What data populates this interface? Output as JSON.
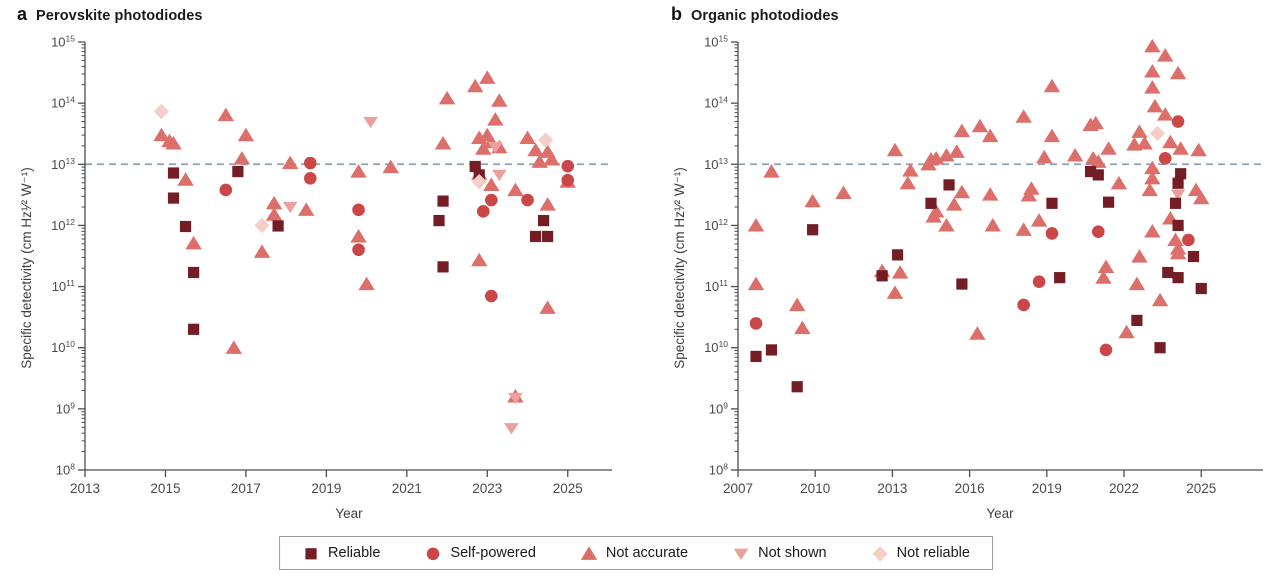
{
  "colors": {
    "reliable": "#741d24",
    "self_powered": "#cb4747",
    "not_accurate": "#dd6f6b",
    "not_shown": "#eb9f9f",
    "not_reliable": "#f6cec9",
    "dashed_line": "#8ca0b6",
    "axis": "#4d4d4d",
    "tick_text": "#4a4a4a"
  },
  "legend": {
    "items": [
      {
        "label": "Reliable",
        "marker": "square",
        "color_key": "reliable"
      },
      {
        "label": "Self-powered",
        "marker": "circle",
        "color_key": "self_powered"
      },
      {
        "label": "Not accurate",
        "marker": "triangle-up",
        "color_key": "not_accurate"
      },
      {
        "label": "Not shown",
        "marker": "triangle-down",
        "color_key": "not_shown"
      },
      {
        "label": "Not reliable",
        "marker": "diamond",
        "color_key": "not_reliable"
      }
    ]
  },
  "chart_data": [
    {
      "type": "scatter",
      "panel_letter": "a",
      "title": "Perovskite photodiodes",
      "xlabel": "Year",
      "ylabel": "Specific detectivity (cm Hz¹⁄² W⁻¹)",
      "x_ticks": [
        2013,
        2015,
        2017,
        2019,
        2021,
        2023,
        2025
      ],
      "x_range": [
        2013,
        2026.1
      ],
      "y_tick_exponents": [
        8,
        9,
        10,
        11,
        12,
        13,
        14,
        15
      ],
      "y_scale": "log",
      "dashed_line_value": 10000000000000.0,
      "series": [
        {
          "key": "not_accurate",
          "name": "Not accurate",
          "marker": "triangle-up",
          "points": [
            [
              2014.9,
              30000000000000.0
            ],
            [
              2015.1,
              24000000000000.0
            ],
            [
              2015.2,
              22000000000000.0
            ],
            [
              2015.5,
              5600000000000.0
            ],
            [
              2015.7,
              510000000000.0
            ],
            [
              2016.5,
              64000000000000.0
            ],
            [
              2016.7,
              10000000000.0
            ],
            [
              2016.9,
              12500000000000.0
            ],
            [
              2017.0,
              30000000000000.0
            ],
            [
              2017.4,
              370000000000.0
            ],
            [
              2017.7,
              2300000000000.0
            ],
            [
              2017.7,
              1500000000000.0
            ],
            [
              2018.1,
              10500000000000.0
            ],
            [
              2018.5,
              1800000000000.0
            ],
            [
              2019.8,
              7600000000000.0
            ],
            [
              2019.8,
              660000000000.0
            ],
            [
              2020.0,
              110000000000.0
            ],
            [
              2020.6,
              9000000000000.0
            ],
            [
              2021.9,
              22000000000000.0
            ],
            [
              2022.0,
              120000000000000.0
            ],
            [
              2022.7,
              190000000000000.0
            ],
            [
              2022.8,
              27000000000000.0
            ],
            [
              2022.8,
              7000000000000.0
            ],
            [
              2022.8,
              270000000000.0
            ],
            [
              2022.9,
              18000000000000.0
            ],
            [
              2023.0,
              260000000000000.0
            ],
            [
              2023.0,
              30000000000000.0
            ],
            [
              2023.1,
              23000000000000.0
            ],
            [
              2023.1,
              4600000000000.0
            ],
            [
              2023.2,
              54000000000000.0
            ],
            [
              2023.3,
              110000000000000.0
            ],
            [
              2023.3,
              19000000000000.0
            ],
            [
              2023.7,
              3800000000000.0
            ],
            [
              2023.7,
              1600000000.0
            ],
            [
              2024.0,
              27000000000000.0
            ],
            [
              2024.2,
              17000000000000.0
            ],
            [
              2024.3,
              11000000000000.0
            ],
            [
              2024.5,
              16000000000000.0
            ],
            [
              2024.5,
              2200000000000.0
            ],
            [
              2024.5,
              45000000000.0
            ],
            [
              2024.6,
              12000000000000.0
            ],
            [
              2025.0,
              5200000000000.0
            ]
          ]
        },
        {
          "key": "not_shown",
          "name": "Not shown",
          "marker": "triangle-down",
          "points": [
            [
              2018.1,
              2000000000000.0
            ],
            [
              2020.1,
              49000000000000.0
            ],
            [
              2023.2,
              19000000000000.0
            ],
            [
              2023.3,
              6700000000000.0
            ],
            [
              2023.7,
              1500000000.0
            ],
            [
              2023.6,
              480000000.0
            ]
          ]
        },
        {
          "key": "self_powered",
          "name": "Self-powered",
          "marker": "circle",
          "points": [
            [
              2016.5,
              3800000000000.0
            ],
            [
              2018.6,
              10500000000000.0
            ],
            [
              2018.6,
              5900000000000.0
            ],
            [
              2019.8,
              1800000000000.0
            ],
            [
              2019.8,
              400000000000.0
            ],
            [
              2022.9,
              1700000000000.0
            ],
            [
              2023.1,
              2600000000000.0
            ],
            [
              2023.1,
              70000000000.0
            ],
            [
              2024.0,
              2600000000000.0
            ],
            [
              2025.0,
              9300000000000.0
            ],
            [
              2025.0,
              5500000000000.0
            ]
          ]
        },
        {
          "key": "reliable",
          "name": "Reliable",
          "marker": "square",
          "points": [
            [
              2015.2,
              7200000000000.0
            ],
            [
              2015.2,
              2800000000000.0
            ],
            [
              2015.5,
              960000000000.0
            ],
            [
              2015.7,
              170000000000.0
            ],
            [
              2015.7,
              20000000000.0
            ],
            [
              2016.8,
              7600000000000.0
            ],
            [
              2017.8,
              980000000000.0
            ],
            [
              2021.8,
              1200000000000.0
            ],
            [
              2021.9,
              2500000000000.0
            ],
            [
              2021.9,
              210000000000.0
            ],
            [
              2022.7,
              9200000000000.0
            ],
            [
              2022.8,
              6700000000000.0
            ],
            [
              2024.2,
              660000000000.0
            ],
            [
              2024.4,
              1200000000000.0
            ],
            [
              2024.5,
              660000000000.0
            ]
          ]
        },
        {
          "key": "not_reliable",
          "name": "Not reliable",
          "marker": "diamond",
          "points": [
            [
              2014.9,
              73000000000000.0
            ],
            [
              2017.4,
              1000000000000.0
            ],
            [
              2022.8,
              5200000000000.0
            ],
            [
              2024.45,
              25000000000000.0
            ]
          ]
        }
      ]
    },
    {
      "type": "scatter",
      "panel_letter": "b",
      "title": "Organic photodiodes",
      "xlabel": "Year",
      "ylabel": "Specific detectivity (cm Hz¹⁄² W⁻¹)",
      "x_ticks": [
        2007,
        2010,
        2013,
        2016,
        2019,
        2022,
        2025
      ],
      "x_range": [
        2007,
        2027.4
      ],
      "y_tick_exponents": [
        8,
        9,
        10,
        11,
        12,
        13,
        14,
        15
      ],
      "y_scale": "log",
      "dashed_line_value": 10000000000000.0,
      "series": [
        {
          "key": "not_accurate",
          "name": "Not accurate",
          "marker": "triangle-up",
          "points": [
            [
              2007.7,
              1000000000000.0
            ],
            [
              2007.7,
              110000000000.0
            ],
            [
              2008.3,
              7600000000000.0
            ],
            [
              2009.3,
              50000000000.0
            ],
            [
              2009.5,
              21000000000.0
            ],
            [
              2009.9,
              2500000000000.0
            ],
            [
              2011.1,
              3400000000000.0
            ],
            [
              2012.6,
              180000000000.0
            ],
            [
              2013.1,
              17000000000000.0
            ],
            [
              2013.1,
              79000000000.0
            ],
            [
              2013.3,
              170000000000.0
            ],
            [
              2013.6,
              4900000000000.0
            ],
            [
              2013.7,
              7900000000000.0
            ],
            [
              2014.4,
              10000000000000.0
            ],
            [
              2014.5,
              12000000000000.0
            ],
            [
              2014.6,
              1400000000000.0
            ],
            [
              2014.7,
              12500000000000.0
            ],
            [
              2014.7,
              1700000000000.0
            ],
            [
              2015.1,
              14000000000000.0
            ],
            [
              2015.1,
              1000000000000.0
            ],
            [
              2015.4,
              2200000000000.0
            ],
            [
              2015.5,
              16000000000000.0
            ],
            [
              2015.7,
              35000000000000.0
            ],
            [
              2015.7,
              3500000000000.0
            ],
            [
              2016.3,
              17000000000.0
            ],
            [
              2016.4,
              42000000000000.0
            ],
            [
              2016.8,
              29000000000000.0
            ],
            [
              2016.8,
              3200000000000.0
            ],
            [
              2016.9,
              1000000000000.0
            ],
            [
              2018.1,
              60000000000000.0
            ],
            [
              2018.1,
              850000000000.0
            ],
            [
              2018.3,
              3100000000000.0
            ],
            [
              2018.4,
              4000000000000.0
            ],
            [
              2018.7,
              1200000000000.0
            ],
            [
              2018.9,
              13000000000000.0
            ],
            [
              2019.2,
              190000000000000.0
            ],
            [
              2019.2,
              29000000000000.0
            ],
            [
              2020.1,
              14000000000000.0
            ],
            [
              2020.7,
              44000000000000.0
            ],
            [
              2020.9,
              47000000000000.0
            ],
            [
              2020.8,
              12500000000000.0
            ],
            [
              2021.0,
              11000000000000.0
            ],
            [
              2021.2,
              140000000000.0
            ],
            [
              2021.3,
              210000000000.0
            ],
            [
              2021.4,
              18000000000000.0
            ],
            [
              2021.8,
              4900000000000.0
            ],
            [
              2022.1,
              18000000000.0
            ],
            [
              2022.4,
              21000000000000.0
            ],
            [
              2022.5,
              110000000000.0
            ],
            [
              2022.6,
              34000000000000.0
            ],
            [
              2022.6,
              310000000000.0
            ],
            [
              2022.8,
              22000000000000.0
            ],
            [
              2023.1,
              850000000000000.0
            ],
            [
              2023.1,
              330000000000000.0
            ],
            [
              2023.1,
              180000000000000.0
            ],
            [
              2023.2,
              89000000000000.0
            ],
            [
              2023.1,
              8700000000000.0
            ],
            [
              2023.1,
              5900000000000.0
            ],
            [
              2023.0,
              3800000000000.0
            ],
            [
              2023.1,
              800000000000.0
            ],
            [
              2023.4,
              60000000000.0
            ],
            [
              2023.6,
              600000000000000.0
            ],
            [
              2023.6,
              65000000000000.0
            ],
            [
              2023.8,
              1300000000000.0
            ],
            [
              2023.8,
              23000000000000.0
            ],
            [
              2024.1,
              310000000000000.0
            ],
            [
              2024.0,
              580000000000.0
            ],
            [
              2024.1,
              420000000000.0
            ],
            [
              2024.1,
              350000000000.0
            ],
            [
              2024.2,
              18000000000000.0
            ],
            [
              2024.8,
              3800000000000.0
            ],
            [
              2024.9,
              17000000000000.0
            ],
            [
              2025.0,
              2800000000000.0
            ]
          ]
        },
        {
          "key": "not_shown",
          "name": "Not shown",
          "marker": "triangle-down",
          "points": [
            [
              2024.1,
              3200000000000.0
            ]
          ]
        },
        {
          "key": "self_powered",
          "name": "Self-powered",
          "marker": "circle",
          "points": [
            [
              2007.7,
              25000000000.0
            ],
            [
              2018.1,
              50000000000.0
            ],
            [
              2018.7,
              120000000000.0
            ],
            [
              2019.2,
              740000000000.0
            ],
            [
              2021.0,
              790000000000.0
            ],
            [
              2021.3,
              9200000000.0
            ],
            [
              2023.6,
              12500000000000.0
            ],
            [
              2024.1,
              50000000000000.0
            ],
            [
              2024.5,
              580000000000.0
            ]
          ]
        },
        {
          "key": "reliable",
          "name": "Reliable",
          "marker": "square",
          "points": [
            [
              2007.7,
              7200000000.0
            ],
            [
              2008.3,
              9200000000.0
            ],
            [
              2009.3,
              2300000000.0
            ],
            [
              2009.9,
              850000000000.0
            ],
            [
              2012.6,
              150000000000.0
            ],
            [
              2013.2,
              330000000000.0
            ],
            [
              2014.5,
              2300000000000.0
            ],
            [
              2015.2,
              4600000000000.0
            ],
            [
              2015.7,
              110000000000.0
            ],
            [
              2019.2,
              2300000000000.0
            ],
            [
              2019.5,
              140000000000.0
            ],
            [
              2020.7,
              7600000000000.0
            ],
            [
              2021.0,
              6700000000000.0
            ],
            [
              2021.4,
              2400000000000.0
            ],
            [
              2022.5,
              28000000000.0
            ],
            [
              2023.4,
              10000000000.0
            ],
            [
              2023.7,
              170000000000.0
            ],
            [
              2024.0,
              2300000000000.0
            ],
            [
              2024.1,
              4900000000000.0
            ],
            [
              2024.1,
              1000000000000.0
            ],
            [
              2024.1,
              140000000000.0
            ],
            [
              2024.2,
              7000000000000.0
            ],
            [
              2024.7,
              310000000000.0
            ],
            [
              2025.0,
              93000000000.0
            ]
          ]
        },
        {
          "key": "not_reliable",
          "name": "Not reliable",
          "marker": "diamond",
          "points": [
            [
              2023.3,
              32000000000000.0
            ]
          ]
        }
      ]
    }
  ]
}
